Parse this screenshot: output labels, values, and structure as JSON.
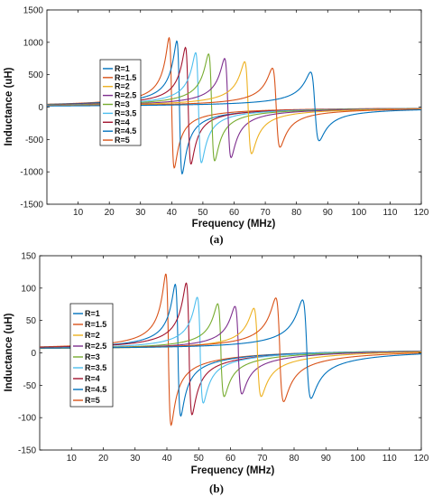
{
  "colors": [
    "#0072BD",
    "#D95319",
    "#EDB120",
    "#7E2F8E",
    "#77AC30",
    "#4DBEEE",
    "#A2142F",
    "#0072BD",
    "#D95319"
  ],
  "chart_data": [
    {
      "type": "line",
      "caption": "(a)",
      "xlabel": "Frequency (MHz)",
      "ylabel": "Inductance (uH)",
      "xlim": [
        0,
        120
      ],
      "ylim": [
        -1500,
        1500
      ],
      "xticks": [
        10,
        20,
        30,
        40,
        50,
        60,
        70,
        80,
        90,
        100,
        110,
        120
      ],
      "yticks": [
        -1500,
        -1000,
        -500,
        0,
        500,
        1000,
        1500
      ],
      "grid": false,
      "legend_position": "left",
      "baseline": 0,
      "series": [
        {
          "name": "R=1",
          "resonance_mhz": 85.9,
          "peak": 540,
          "trough": -520
        },
        {
          "name": "R=1.5",
          "resonance_mhz": 73.5,
          "peak": 600,
          "trough": -620
        },
        {
          "name": "R=2",
          "resonance_mhz": 64.5,
          "peak": 700,
          "trough": -720
        },
        {
          "name": "R=2.5",
          "resonance_mhz": 58.0,
          "peak": 750,
          "trough": -780
        },
        {
          "name": "R=3",
          "resonance_mhz": 52.8,
          "peak": 820,
          "trough": -830
        },
        {
          "name": "R=3.5",
          "resonance_mhz": 48.6,
          "peak": 840,
          "trough": -860
        },
        {
          "name": "R=4",
          "resonance_mhz": 45.3,
          "peak": 920,
          "trough": -880
        },
        {
          "name": "R=4.5",
          "resonance_mhz": 42.5,
          "peak": 1020,
          "trough": -1030
        },
        {
          "name": "R=5",
          "resonance_mhz": 40.0,
          "peak": 1070,
          "trough": -940
        }
      ]
    },
    {
      "type": "line",
      "caption": "(b)",
      "xlabel": "Frequency (MHz)",
      "ylabel": "Inductance (uH)",
      "xlim": [
        0,
        120
      ],
      "ylim": [
        -150,
        150
      ],
      "xticks": [
        10,
        20,
        30,
        40,
        50,
        60,
        70,
        80,
        90,
        100,
        110,
        120
      ],
      "yticks": [
        -150,
        -100,
        -50,
        0,
        50,
        100,
        150
      ],
      "grid": false,
      "legend_position": "left",
      "baseline": 5,
      "series": [
        {
          "name": "R=1",
          "resonance_mhz": 84.0,
          "peak": 76,
          "trough": -65
        },
        {
          "name": "R=1.5",
          "resonance_mhz": 75.5,
          "peak": 79,
          "trough": -70
        },
        {
          "name": "R=2",
          "resonance_mhz": 68.5,
          "peak": 63,
          "trough": -62
        },
        {
          "name": "R=2.5",
          "resonance_mhz": 62.5,
          "peak": 66,
          "trough": -58
        },
        {
          "name": "R=3",
          "resonance_mhz": 57.0,
          "peak": 70,
          "trough": -62
        },
        {
          "name": "R=3.5",
          "resonance_mhz": 50.5,
          "peak": 80,
          "trough": -72
        },
        {
          "name": "R=4",
          "resonance_mhz": 47.0,
          "peak": 102,
          "trough": -90
        },
        {
          "name": "R=4.5",
          "resonance_mhz": 43.5,
          "peak": 100,
          "trough": -92
        },
        {
          "name": "R=5",
          "resonance_mhz": 40.5,
          "peak": 116,
          "trough": -106
        }
      ]
    }
  ]
}
